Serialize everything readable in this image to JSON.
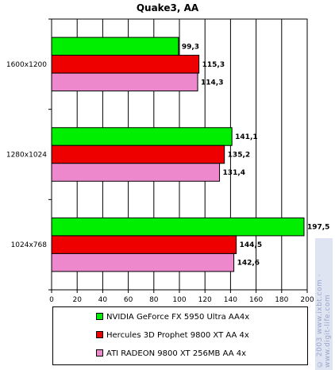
{
  "chart_data": {
    "type": "bar",
    "orientation": "horizontal",
    "title": "Quake3, AA",
    "categories": [
      "1600x1200",
      "1280x1024",
      "1024x768"
    ],
    "series": [
      {
        "name": "NVIDIA GeForce FX 5950 Ultra AA4x",
        "color": "#00ee00",
        "values": [
          99.3,
          141.1,
          197.5
        ],
        "labels": [
          "99,3",
          "141,1",
          "197,5"
        ]
      },
      {
        "name": "Hercules 3D Prophet 9800 XT AA 4x",
        "color": "#ee0000",
        "values": [
          115.3,
          135.2,
          144.5
        ],
        "labels": [
          "115,3",
          "135,2",
          "144,5"
        ]
      },
      {
        "name": "ATI RADEON 9800 XT 256MB AA 4x",
        "color": "#ee88cc",
        "values": [
          114.3,
          131.4,
          142.6
        ],
        "labels": [
          "114,3",
          "131,4",
          "142,6"
        ]
      }
    ],
    "xlim": [
      0,
      200
    ],
    "xticks": [
      0,
      20,
      40,
      60,
      80,
      100,
      120,
      140,
      160,
      180,
      200
    ],
    "grid": "vertical",
    "legend_position": "bottom"
  },
  "watermark": "© 2003 www.ixbt.com · www.digit-life.com"
}
